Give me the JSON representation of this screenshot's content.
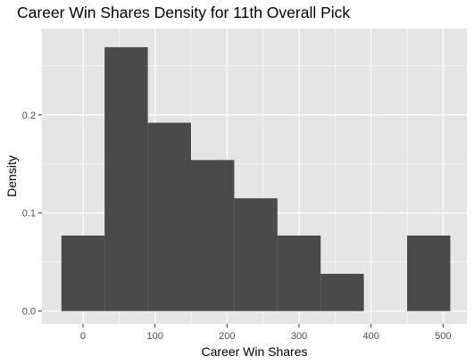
{
  "chart_data": {
    "type": "histogram",
    "title": "Career Win Shares Density for 11th Overall Pick",
    "xlabel": "Career Win Shares",
    "ylabel": "Density",
    "x_ticks": [
      0,
      100,
      200,
      300,
      400,
      500
    ],
    "y_ticks": [
      0.0,
      0.1,
      0.2
    ],
    "y_tick_labels": [
      "0.0",
      "0.1",
      "0.2"
    ],
    "xlim": [
      -57,
      533
    ],
    "ylim": [
      -0.013,
      0.288
    ],
    "bin_width": 60,
    "bins": [
      {
        "x0": -30,
        "x1": 30,
        "density": 0.077
      },
      {
        "x0": 30,
        "x1": 90,
        "density": 0.269
      },
      {
        "x0": 90,
        "x1": 150,
        "density": 0.192
      },
      {
        "x0": 150,
        "x1": 210,
        "density": 0.154
      },
      {
        "x0": 210,
        "x1": 270,
        "density": 0.115
      },
      {
        "x0": 270,
        "x1": 330,
        "density": 0.077
      },
      {
        "x0": 330,
        "x1": 390,
        "density": 0.038
      },
      {
        "x0": 390,
        "x1": 450,
        "density": 0.0
      },
      {
        "x0": 450,
        "x1": 510,
        "density": 0.077
      }
    ],
    "bar_color": "#4a4a4a",
    "panel_background": "#e5e5e5",
    "grid": true,
    "grid_color": "#ffffff",
    "legend": "none"
  }
}
